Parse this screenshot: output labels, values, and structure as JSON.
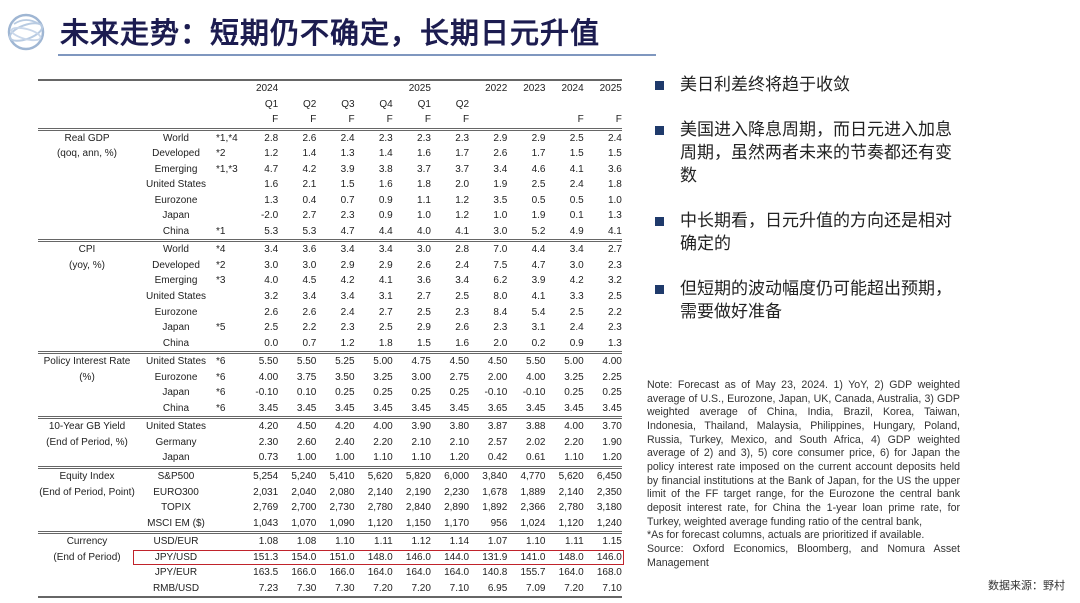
{
  "title": "未来走势：短期仍不确定，长期日元升值",
  "table": {
    "header": {
      "years": [
        "2024",
        "",
        "",
        "",
        "2025",
        "",
        "2022",
        "2023",
        "2024",
        "2025"
      ],
      "quarters": [
        "Q1",
        "Q2",
        "Q3",
        "Q4",
        "Q1",
        "Q2",
        "",
        "",
        "",
        ""
      ],
      "forecast": [
        "F",
        "F",
        "F",
        "F",
        "F",
        "F",
        "",
        "",
        "F",
        "F"
      ]
    },
    "sections": [
      {
        "label": [
          "Real GDP",
          "(qoq, ann, %)"
        ],
        "rows": [
          {
            "name": "World",
            "note": "*1,*4",
            "values": [
              "2.8",
              "2.6",
              "2.4",
              "2.3",
              "2.3",
              "2.3",
              "2.9",
              "2.9",
              "2.5",
              "2.4"
            ]
          },
          {
            "name": "Developed",
            "note": "*2",
            "values": [
              "1.2",
              "1.4",
              "1.3",
              "1.4",
              "1.6",
              "1.7",
              "2.6",
              "1.7",
              "1.5",
              "1.5"
            ]
          },
          {
            "name": "Emerging",
            "note": "*1,*3",
            "values": [
              "4.7",
              "4.2",
              "3.9",
              "3.8",
              "3.7",
              "3.7",
              "3.4",
              "4.6",
              "4.1",
              "3.6"
            ]
          },
          {
            "name": "United States",
            "note": "",
            "values": [
              "1.6",
              "2.1",
              "1.5",
              "1.6",
              "1.8",
              "2.0",
              "1.9",
              "2.5",
              "2.4",
              "1.8"
            ]
          },
          {
            "name": "Eurozone",
            "note": "",
            "values": [
              "1.3",
              "0.4",
              "0.7",
              "0.9",
              "1.1",
              "1.2",
              "3.5",
              "0.5",
              "0.5",
              "1.0"
            ]
          },
          {
            "name": "Japan",
            "note": "",
            "values": [
              "-2.0",
              "2.7",
              "2.3",
              "0.9",
              "1.0",
              "1.2",
              "1.0",
              "1.9",
              "0.1",
              "1.3"
            ]
          },
          {
            "name": "China",
            "note": "*1",
            "values": [
              "5.3",
              "5.3",
              "4.7",
              "4.4",
              "4.0",
              "4.1",
              "3.0",
              "5.2",
              "4.9",
              "4.1"
            ]
          }
        ]
      },
      {
        "label": [
          "CPI",
          "(yoy, %)"
        ],
        "rows": [
          {
            "name": "World",
            "note": "*4",
            "values": [
              "3.4",
              "3.6",
              "3.4",
              "3.4",
              "3.0",
              "2.8",
              "7.0",
              "4.4",
              "3.4",
              "2.7"
            ]
          },
          {
            "name": "Developed",
            "note": "*2",
            "values": [
              "3.0",
              "3.0",
              "2.9",
              "2.9",
              "2.6",
              "2.4",
              "7.5",
              "4.7",
              "3.0",
              "2.3"
            ]
          },
          {
            "name": "Emerging",
            "note": "*3",
            "values": [
              "4.0",
              "4.5",
              "4.2",
              "4.1",
              "3.6",
              "3.4",
              "6.2",
              "3.9",
              "4.2",
              "3.2"
            ]
          },
          {
            "name": "United States",
            "note": "",
            "values": [
              "3.2",
              "3.4",
              "3.4",
              "3.1",
              "2.7",
              "2.5",
              "8.0",
              "4.1",
              "3.3",
              "2.5"
            ]
          },
          {
            "name": "Eurozone",
            "note": "",
            "values": [
              "2.6",
              "2.6",
              "2.4",
              "2.7",
              "2.5",
              "2.3",
              "8.4",
              "5.4",
              "2.5",
              "2.2"
            ]
          },
          {
            "name": "Japan",
            "note": "*5",
            "values": [
              "2.5",
              "2.2",
              "2.3",
              "2.5",
              "2.9",
              "2.6",
              "2.3",
              "3.1",
              "2.4",
              "2.3"
            ]
          },
          {
            "name": "China",
            "note": "",
            "values": [
              "0.0",
              "0.7",
              "1.2",
              "1.8",
              "1.5",
              "1.6",
              "2.0",
              "0.2",
              "0.9",
              "1.3"
            ]
          }
        ]
      },
      {
        "label": [
          "Policy Interest Rate",
          "(%)"
        ],
        "rows": [
          {
            "name": "United States",
            "note": "*6",
            "values": [
              "5.50",
              "5.50",
              "5.25",
              "5.00",
              "4.75",
              "4.50",
              "4.50",
              "5.50",
              "5.00",
              "4.00"
            ]
          },
          {
            "name": "Eurozone",
            "note": "*6",
            "values": [
              "4.00",
              "3.75",
              "3.50",
              "3.25",
              "3.00",
              "2.75",
              "2.00",
              "4.00",
              "3.25",
              "2.25"
            ]
          },
          {
            "name": "Japan",
            "note": "*6",
            "values": [
              "-0.10",
              "0.10",
              "0.25",
              "0.25",
              "0.25",
              "0.25",
              "-0.10",
              "-0.10",
              "0.25",
              "0.25"
            ]
          },
          {
            "name": "China",
            "note": "*6",
            "values": [
              "3.45",
              "3.45",
              "3.45",
              "3.45",
              "3.45",
              "3.45",
              "3.65",
              "3.45",
              "3.45",
              "3.45"
            ]
          }
        ]
      },
      {
        "label": [
          "10-Year GB Yield",
          "(End of Period, %)"
        ],
        "rows": [
          {
            "name": "United States",
            "note": "",
            "values": [
              "4.20",
              "4.50",
              "4.20",
              "4.00",
              "3.90",
              "3.80",
              "3.87",
              "3.88",
              "4.00",
              "3.70"
            ]
          },
          {
            "name": "Germany",
            "note": "",
            "values": [
              "2.30",
              "2.60",
              "2.40",
              "2.20",
              "2.10",
              "2.10",
              "2.57",
              "2.02",
              "2.20",
              "1.90"
            ]
          },
          {
            "name": "Japan",
            "note": "",
            "values": [
              "0.73",
              "1.00",
              "1.00",
              "1.10",
              "1.10",
              "1.20",
              "0.42",
              "0.61",
              "1.10",
              "1.20"
            ]
          }
        ]
      },
      {
        "label": [
          "Equity Index",
          "(End of Period, Point)"
        ],
        "rows": [
          {
            "name": "S&P500",
            "note": "",
            "values": [
              "5,254",
              "5,240",
              "5,410",
              "5,620",
              "5,820",
              "6,000",
              "3,840",
              "4,770",
              "5,620",
              "6,450"
            ]
          },
          {
            "name": "EURO300",
            "note": "",
            "values": [
              "2,031",
              "2,040",
              "2,080",
              "2,140",
              "2,190",
              "2,230",
              "1,678",
              "1,889",
              "2,140",
              "2,350"
            ]
          },
          {
            "name": "TOPIX",
            "note": "",
            "values": [
              "2,769",
              "2,700",
              "2,730",
              "2,780",
              "2,840",
              "2,890",
              "1,892",
              "2,366",
              "2,780",
              "3,180"
            ]
          },
          {
            "name": "MSCI EM ($)",
            "note": "",
            "values": [
              "1,043",
              "1,070",
              "1,090",
              "1,120",
              "1,150",
              "1,170",
              "956",
              "1,024",
              "1,120",
              "1,240"
            ]
          }
        ]
      },
      {
        "label": [
          "Currency",
          "(End of Period)"
        ],
        "rows": [
          {
            "name": "USD/EUR",
            "note": "",
            "values": [
              "1.08",
              "1.08",
              "1.10",
              "1.11",
              "1.12",
              "1.14",
              "1.07",
              "1.10",
              "1.11",
              "1.15"
            ]
          },
          {
            "name": "JPY/USD",
            "note": "",
            "highlight": true,
            "values": [
              "151.3",
              "154.0",
              "151.0",
              "148.0",
              "146.0",
              "144.0",
              "131.9",
              "141.0",
              "148.0",
              "146.0"
            ]
          },
          {
            "name": "JPY/EUR",
            "note": "",
            "values": [
              "163.5",
              "166.0",
              "166.0",
              "164.0",
              "164.0",
              "164.0",
              "140.8",
              "155.7",
              "164.0",
              "168.0"
            ]
          },
          {
            "name": "RMB/USD",
            "note": "",
            "values": [
              "7.23",
              "7.30",
              "7.30",
              "7.20",
              "7.20",
              "7.10",
              "6.95",
              "7.09",
              "7.20",
              "7.10"
            ]
          }
        ]
      }
    ],
    "highlight_color": "#c0232b"
  },
  "bullets": [
    "美日利差终将趋于收敛",
    "美国进入降息周期，而日元进入加息周期，虽然两者未来的节奏都还有变数",
    "中长期看，日元升值的方向还是相对确定的",
    "但短期的波动幅度仍可能超出预期，需要做好准备"
  ],
  "note": {
    "body": "Note: Forecast as of May 23, 2024. 1) YoY, 2) GDP weighted average of U.S., Eurozone, Japan, UK, Canada, Australia, 3) GDP weighted average of China, India, Brazil, Korea, Taiwan, Indonesia, Thailand, Malaysia, Philippines, Hungary, Poland, Russia, Turkey, Mexico, and South Africa, 4) GDP weighted average of 2) and 3), 5) core consumer price, 6) for Japan the policy interest rate imposed on the current account deposits held by financial institutions at the Bank of Japan, for the US the upper limit of the FF target range, for the Eurozone the central bank deposit interest rate, for China the 1-year loan prime rate, for Turkey, weighted average funding ratio of the central bank,",
    "asterisk": "*As for forecast columns, actuals are prioritized if available.",
    "source": "Source: Oxford Economics, Bloomberg, and Nomura Asset Management"
  },
  "footer_source": "数据来源：野村",
  "colors": {
    "title": "#1c1c50",
    "bullet": "#1f3a6b",
    "rule": "#7f97bf"
  }
}
